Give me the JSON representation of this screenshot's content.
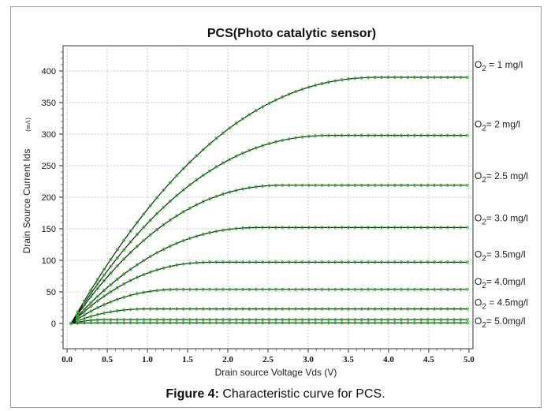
{
  "chart_data": {
    "type": "line",
    "title": "PCS(Photo catalytic sensor)",
    "xlabel": "Drain source Voltage Vds (V)",
    "ylabel": "Drain Source Current Ids",
    "ylabel_unit": "(mA)",
    "xlim": [
      -0.05,
      5.05
    ],
    "ylim": [
      -40,
      440
    ],
    "x_ticks": [
      "0.0",
      "0.5",
      "1.0",
      "1.5",
      "2.0",
      "2.5",
      "3.0",
      "3.5",
      "4.0",
      "4.5",
      "5.0"
    ],
    "y_ticks": [
      "0",
      "50",
      "100",
      "150",
      "200",
      "250",
      "300",
      "350",
      "400"
    ],
    "grid": true,
    "series": [
      {
        "name": "O2 = 1 mg/l",
        "label_sub": "2",
        "label_pre": "O",
        "label_post": " = 1 mg/l",
        "saturation": 390,
        "knee": 3.9
      },
      {
        "name": "O2= 2 mg/l",
        "label_sub": "2",
        "label_pre": "O",
        "label_post": "= 2 mg/l",
        "saturation": 298,
        "knee": 3.3
      },
      {
        "name": "O2= 2.5 mg/l",
        "label_sub": "2",
        "label_pre": "O",
        "label_post": "= 2.5 mg/l",
        "saturation": 219,
        "knee": 2.7
      },
      {
        "name": "O2= 3.0 mg/l",
        "label_sub": "2",
        "label_pre": "O",
        "label_post": "= 3.0 mg/l",
        "saturation": 152,
        "knee": 2.4
      },
      {
        "name": "O2= 3.5mg/l",
        "label_sub": "2",
        "label_pre": "O",
        "label_post": "= 3.5mg/l",
        "saturation": 97,
        "knee": 1.8
      },
      {
        "name": "O2= 4.0mg/l",
        "label_sub": "2",
        "label_pre": "O",
        "label_post": "= 4.0mg/l",
        "saturation": 54,
        "knee": 1.4
      },
      {
        "name": "O2 = 4.5mg/l",
        "label_sub": "2",
        "label_pre": "O",
        "label_post": " = 4.5mg/l",
        "saturation": 23,
        "knee": 1.0
      },
      {
        "name": "O2= 5.0mg/l",
        "label_sub": "2",
        "label_pre": "O",
        "label_post": "= 5.0mg/l",
        "saturation": 6,
        "knee": 0.5
      },
      {
        "name": "",
        "label_sub": "",
        "label_pre": "",
        "label_post": "",
        "saturation": 1,
        "knee": 0.4
      }
    ],
    "x_start": 0.05,
    "x_end": 4.98,
    "colors": {
      "line": "#1a1a1a",
      "marker": "#33cc33",
      "grid": "#c8c8c8",
      "axis": "#333333"
    }
  },
  "caption": {
    "bold": "Figure 4:",
    "text": " Characteristic curve for PCS."
  }
}
